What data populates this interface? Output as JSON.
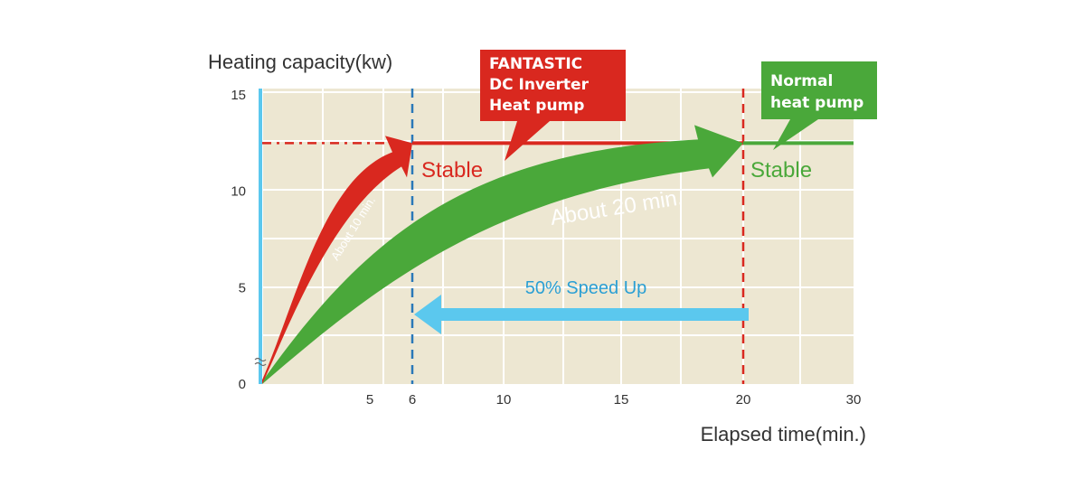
{
  "chart_data": {
    "type": "line",
    "title": "",
    "ylabel": "Heating capacity(kw)",
    "xlabel": "Elapsed time(min.)",
    "x_ticks": [
      5,
      6,
      10,
      15,
      20,
      30
    ],
    "y_ticks": [
      0,
      5,
      10,
      15
    ],
    "grid": true,
    "series": [
      {
        "name": "FANTASTIC DC Inverter Heat pump",
        "color": "#d9281f",
        "x": [
          0,
          6,
          30
        ],
        "y": [
          0,
          12.5,
          12.5
        ]
      },
      {
        "name": "Normal heat pump",
        "color": "#4aa83a",
        "x": [
          0,
          20,
          30
        ],
        "y": [
          0,
          12.5,
          12.5
        ]
      }
    ],
    "reference_lines": [
      {
        "axis": "x",
        "value": 6,
        "color": "#2a78b8"
      },
      {
        "axis": "x",
        "value": 20,
        "color": "#d9281f"
      },
      {
        "axis": "y",
        "value": 12.5,
        "color": "#d9281f"
      }
    ],
    "callouts": {
      "inverter": [
        "FANTASTIC",
        "DC Inverter",
        "Heat pump"
      ],
      "normal": [
        "Normal",
        "heat pump"
      ]
    },
    "annotations": {
      "stable_inverter": "Stable",
      "stable_normal": "Stable",
      "about_10": "About 10 min.",
      "about_20": "About 20 min.",
      "speed_up": "50% Speed Up"
    },
    "colors": {
      "plot_bg": "#ede7d2",
      "grid": "#ffffff",
      "y_axis": "#5bc8ee",
      "speed_arrow": "#5bc8ee",
      "text": "#333333"
    }
  }
}
